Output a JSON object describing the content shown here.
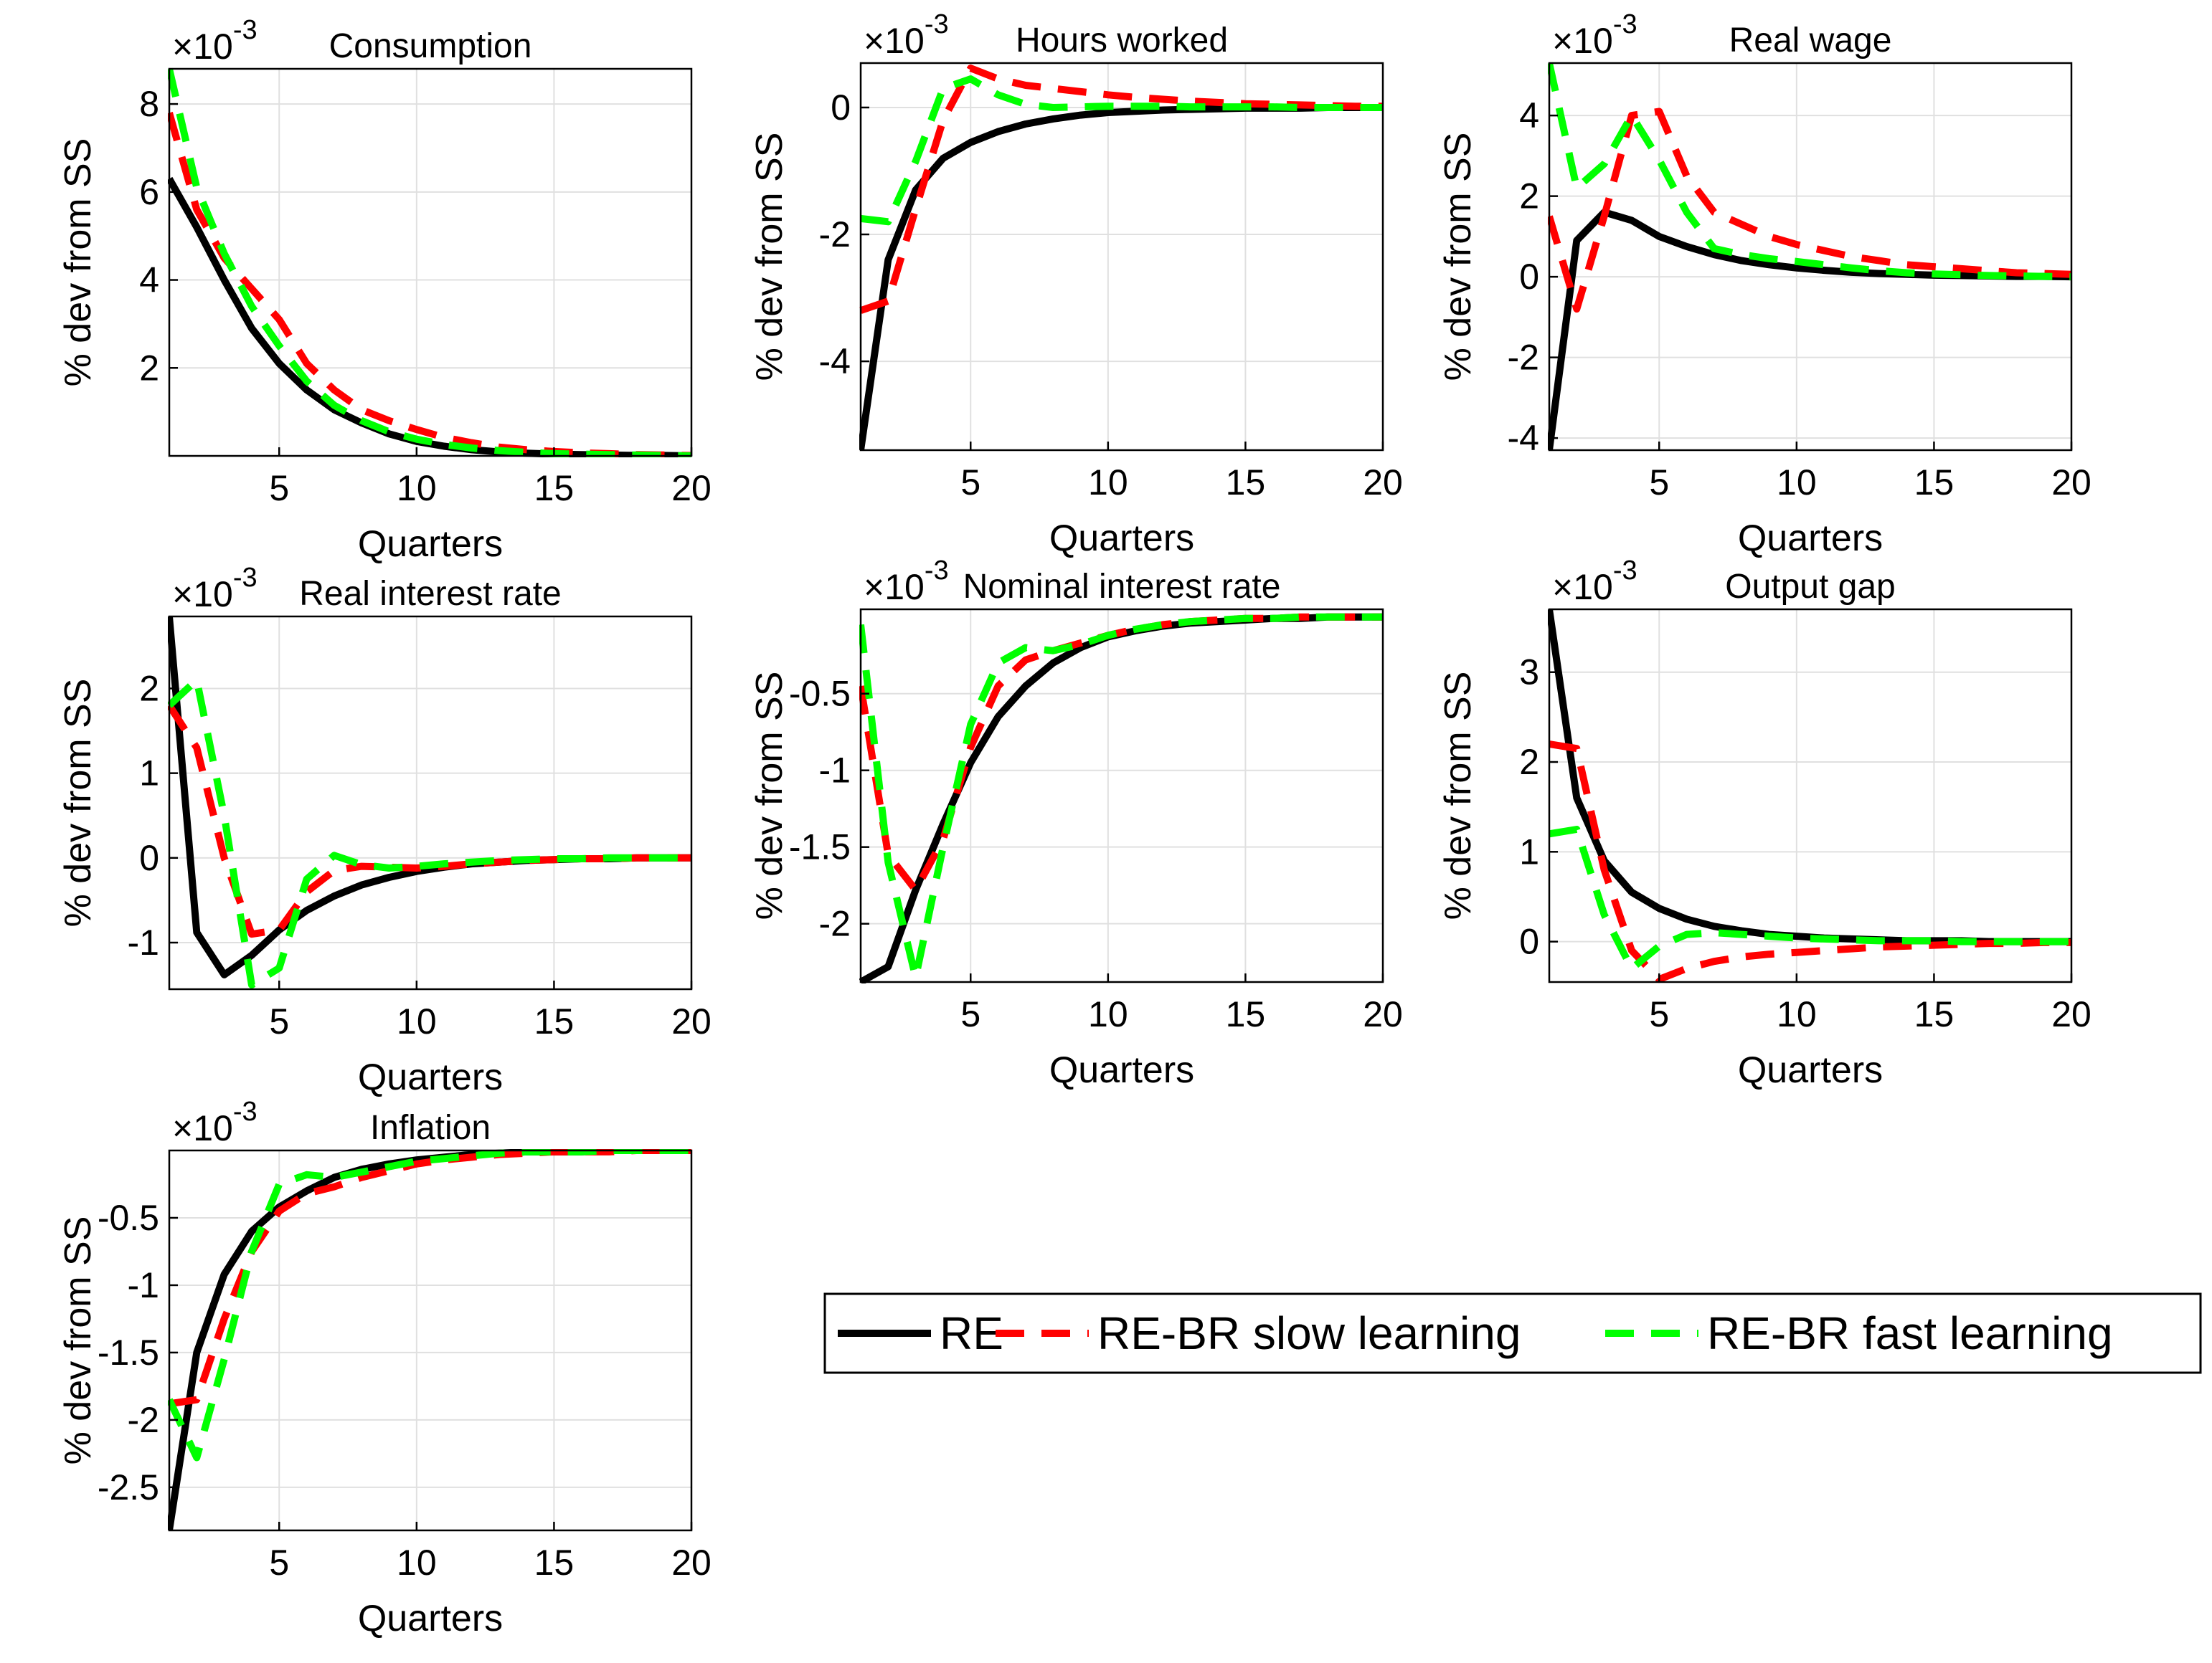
{
  "figure": {
    "legend": {
      "placement": "bottom-right",
      "entries": [
        {
          "name": "RE",
          "color": "#000000",
          "style": "solid"
        },
        {
          "name": "RE-BR slow learning",
          "color": "#ff0000",
          "style": "dashed"
        },
        {
          "name": "RE-BR fast learning",
          "color": "#00ff00",
          "style": "dashed"
        }
      ]
    }
  },
  "chart_data": [
    {
      "type": "line",
      "title": "Consumption",
      "exponent": "-3",
      "xlabel": "Quarters",
      "ylabel": "% dev from SS",
      "xlim": [
        1,
        20
      ],
      "ylim": [
        0,
        8.8
      ],
      "xticks": [
        5,
        10,
        15,
        20
      ],
      "yticks": [
        2,
        4,
        6,
        8
      ],
      "x": [
        1,
        2,
        3,
        4,
        5,
        6,
        7,
        8,
        9,
        10,
        11,
        12,
        13,
        14,
        15,
        16,
        17,
        18,
        19,
        20
      ],
      "series": [
        {
          "name": "RE",
          "values": [
            6.3,
            5.2,
            4.0,
            2.9,
            2.1,
            1.5,
            1.05,
            0.75,
            0.5,
            0.33,
            0.22,
            0.14,
            0.09,
            0.06,
            0.04,
            0.03,
            0.02,
            0.01,
            0.01,
            0.0
          ]
        },
        {
          "name": "RE-BR slow learning",
          "values": [
            7.8,
            5.6,
            4.5,
            3.8,
            3.1,
            2.1,
            1.5,
            1.05,
            0.8,
            0.6,
            0.42,
            0.3,
            0.2,
            0.14,
            0.1,
            0.07,
            0.05,
            0.03,
            0.02,
            0.01
          ]
        },
        {
          "name": "RE-BR fast learning",
          "values": [
            8.8,
            6.1,
            4.6,
            3.4,
            2.5,
            1.7,
            1.15,
            0.8,
            0.55,
            0.38,
            0.26,
            0.18,
            0.12,
            0.08,
            0.05,
            0.04,
            0.03,
            0.02,
            0.01,
            0.0
          ]
        }
      ]
    },
    {
      "type": "line",
      "title": "Hours worked",
      "exponent": "-3",
      "xlabel": "Quarters",
      "ylabel": "% dev from SS",
      "xlim": [
        1,
        20
      ],
      "ylim": [
        -5.4,
        0.7
      ],
      "xticks": [
        5,
        10,
        15,
        20
      ],
      "yticks": [
        -4,
        -2,
        0
      ],
      "x": [
        1,
        2,
        3,
        4,
        5,
        6,
        7,
        8,
        9,
        10,
        11,
        12,
        13,
        14,
        15,
        16,
        17,
        18,
        19,
        20
      ],
      "series": [
        {
          "name": "RE",
          "values": [
            -5.4,
            -2.4,
            -1.3,
            -0.8,
            -0.55,
            -0.38,
            -0.26,
            -0.18,
            -0.12,
            -0.08,
            -0.06,
            -0.04,
            -0.03,
            -0.02,
            -0.01,
            -0.01,
            -0.01,
            0.0,
            0.0,
            0.0
          ]
        },
        {
          "name": "RE-BR slow learning",
          "values": [
            -3.2,
            -3.05,
            -1.6,
            -0.2,
            0.62,
            0.45,
            0.35,
            0.3,
            0.25,
            0.2,
            0.16,
            0.13,
            0.1,
            0.08,
            0.06,
            0.05,
            0.04,
            0.03,
            0.02,
            0.02
          ]
        },
        {
          "name": "RE-BR fast learning",
          "values": [
            -1.75,
            -1.8,
            -0.85,
            0.3,
            0.45,
            0.2,
            0.05,
            0.0,
            0.01,
            0.02,
            0.02,
            0.02,
            0.01,
            0.01,
            0.01,
            0.01,
            0.0,
            0.0,
            0.0,
            0.0
          ]
        }
      ]
    },
    {
      "type": "line",
      "title": "Real wage",
      "exponent": "-3",
      "xlabel": "Quarters",
      "ylabel": "% dev from SS",
      "xlim": [
        1,
        20
      ],
      "ylim": [
        -4.3,
        5.3
      ],
      "xticks": [
        5,
        10,
        15,
        20
      ],
      "yticks": [
        -4,
        -2,
        0,
        2,
        4
      ],
      "x": [
        1,
        2,
        3,
        4,
        5,
        6,
        7,
        8,
        9,
        10,
        11,
        12,
        13,
        14,
        15,
        16,
        17,
        18,
        19,
        20
      ],
      "series": [
        {
          "name": "RE",
          "values": [
            -4.3,
            0.9,
            1.6,
            1.4,
            1.0,
            0.75,
            0.55,
            0.4,
            0.3,
            0.22,
            0.16,
            0.11,
            0.08,
            0.06,
            0.04,
            0.03,
            0.02,
            0.01,
            0.01,
            0.0
          ]
        },
        {
          "name": "RE-BR slow learning",
          "values": [
            1.5,
            -0.8,
            1.5,
            4.0,
            4.1,
            2.5,
            1.6,
            1.3,
            1.0,
            0.8,
            0.65,
            0.5,
            0.4,
            0.3,
            0.25,
            0.2,
            0.15,
            0.1,
            0.08,
            0.06
          ]
        },
        {
          "name": "RE-BR fast learning",
          "values": [
            5.3,
            2.2,
            2.8,
            4.0,
            2.9,
            1.6,
            0.7,
            0.55,
            0.45,
            0.38,
            0.3,
            0.22,
            0.15,
            0.1,
            0.07,
            0.05,
            0.03,
            0.02,
            0.01,
            0.0
          ]
        }
      ]
    },
    {
      "type": "line",
      "title": "Real interest rate",
      "exponent": "-3",
      "xlabel": "Quarters",
      "ylabel": "% dev from SS",
      "xlim": [
        1,
        20
      ],
      "ylim": [
        -1.55,
        2.85
      ],
      "xticks": [
        5,
        10,
        15,
        20
      ],
      "yticks": [
        -1,
        0,
        1,
        2
      ],
      "x": [
        1,
        2,
        3,
        4,
        5,
        6,
        7,
        8,
        9,
        10,
        11,
        12,
        13,
        14,
        15,
        16,
        17,
        18,
        19,
        20
      ],
      "series": [
        {
          "name": "RE",
          "values": [
            2.85,
            -0.88,
            -1.38,
            -1.15,
            -0.85,
            -0.62,
            -0.45,
            -0.32,
            -0.23,
            -0.16,
            -0.11,
            -0.07,
            -0.05,
            -0.03,
            -0.02,
            -0.01,
            -0.01,
            0.0,
            0.0,
            0.0
          ]
        },
        {
          "name": "RE-BR slow learning",
          "values": [
            1.8,
            1.3,
            0.0,
            -0.9,
            -0.85,
            -0.4,
            -0.15,
            -0.1,
            -0.11,
            -0.12,
            -0.1,
            -0.07,
            -0.05,
            -0.03,
            -0.02,
            -0.01,
            -0.01,
            0.0,
            0.0,
            0.0
          ]
        },
        {
          "name": "RE-BR fast learning",
          "values": [
            1.8,
            2.1,
            0.5,
            -1.5,
            -1.3,
            -0.25,
            0.03,
            -0.08,
            -0.12,
            -0.1,
            -0.07,
            -0.05,
            -0.03,
            -0.02,
            -0.01,
            -0.01,
            0.0,
            0.0,
            0.0,
            0.0
          ]
        }
      ]
    },
    {
      "type": "line",
      "title": "Nominal interest rate",
      "exponent": "-3",
      "xlabel": "Quarters",
      "ylabel": "% dev from SS",
      "xlim": [
        1,
        20
      ],
      "ylim": [
        -2.38,
        0.05
      ],
      "xticks": [
        5,
        10,
        15,
        20
      ],
      "yticks": [
        -2,
        -1.5,
        -1,
        -0.5
      ],
      "x": [
        1,
        2,
        3,
        4,
        5,
        6,
        7,
        8,
        9,
        10,
        11,
        12,
        13,
        14,
        15,
        16,
        17,
        18,
        19,
        20
      ],
      "series": [
        {
          "name": "RE",
          "values": [
            -2.38,
            -2.28,
            -1.78,
            -1.35,
            -0.95,
            -0.65,
            -0.45,
            -0.3,
            -0.2,
            -0.13,
            -0.09,
            -0.06,
            -0.04,
            -0.03,
            -0.02,
            -0.01,
            -0.01,
            0.0,
            0.0,
            0.0
          ]
        },
        {
          "name": "RE-BR slow learning",
          "values": [
            -0.45,
            -1.55,
            -1.78,
            -1.45,
            -0.85,
            -0.45,
            -0.28,
            -0.22,
            -0.17,
            -0.12,
            -0.08,
            -0.05,
            -0.03,
            -0.02,
            -0.01,
            -0.01,
            0.0,
            0.0,
            0.0,
            0.0
          ]
        },
        {
          "name": "RE-BR fast learning",
          "values": [
            -0.05,
            -1.6,
            -2.35,
            -1.5,
            -0.7,
            -0.3,
            -0.2,
            -0.22,
            -0.18,
            -0.12,
            -0.08,
            -0.05,
            -0.03,
            -0.02,
            -0.01,
            -0.01,
            0.0,
            0.0,
            0.0,
            0.0
          ]
        }
      ]
    },
    {
      "type": "line",
      "title": "Output gap",
      "exponent": "-3",
      "xlabel": "Quarters",
      "ylabel": "% dev from SS",
      "xlim": [
        1,
        20
      ],
      "ylim": [
        -0.45,
        3.7
      ],
      "xticks": [
        5,
        10,
        15,
        20
      ],
      "yticks": [
        0,
        1,
        2,
        3
      ],
      "x": [
        1,
        2,
        3,
        4,
        5,
        6,
        7,
        8,
        9,
        10,
        11,
        12,
        13,
        14,
        15,
        16,
        17,
        18,
        19,
        20
      ],
      "series": [
        {
          "name": "RE",
          "values": [
            3.7,
            1.6,
            0.9,
            0.55,
            0.37,
            0.25,
            0.17,
            0.12,
            0.08,
            0.06,
            0.04,
            0.03,
            0.02,
            0.01,
            0.01,
            0.01,
            0.0,
            0.0,
            0.0,
            0.0
          ]
        },
        {
          "name": "RE-BR slow learning",
          "values": [
            2.2,
            2.15,
            0.8,
            -0.1,
            -0.42,
            -0.3,
            -0.22,
            -0.17,
            -0.14,
            -0.12,
            -0.1,
            -0.08,
            -0.06,
            -0.05,
            -0.04,
            -0.03,
            -0.02,
            -0.02,
            -0.01,
            -0.01
          ]
        },
        {
          "name": "RE-BR fast learning",
          "values": [
            1.2,
            1.25,
            0.3,
            -0.3,
            -0.05,
            0.08,
            0.1,
            0.08,
            0.06,
            0.04,
            0.03,
            0.02,
            0.01,
            0.01,
            0.01,
            0.0,
            0.0,
            0.0,
            0.0,
            0.0
          ]
        }
      ]
    },
    {
      "type": "line",
      "title": "Inflation",
      "exponent": "-3",
      "xlabel": "Quarters",
      "ylabel": "% dev from SS",
      "xlim": [
        1,
        20
      ],
      "ylim": [
        -2.82,
        0.0
      ],
      "xticks": [
        5,
        10,
        15,
        20
      ],
      "yticks": [
        -2.5,
        -2,
        -1.5,
        -1,
        -0.5
      ],
      "x": [
        1,
        2,
        3,
        4,
        5,
        6,
        7,
        8,
        9,
        10,
        11,
        12,
        13,
        14,
        15,
        16,
        17,
        18,
        19,
        20
      ],
      "series": [
        {
          "name": "RE",
          "values": [
            -2.82,
            -1.5,
            -0.92,
            -0.6,
            -0.42,
            -0.3,
            -0.2,
            -0.14,
            -0.1,
            -0.07,
            -0.05,
            -0.03,
            -0.02,
            -0.01,
            -0.01,
            -0.01,
            0.0,
            0.0,
            0.0,
            0.0
          ]
        },
        {
          "name": "RE-BR slow learning",
          "values": [
            -1.88,
            -1.85,
            -1.25,
            -0.75,
            -0.45,
            -0.32,
            -0.27,
            -0.2,
            -0.15,
            -0.1,
            -0.07,
            -0.05,
            -0.03,
            -0.02,
            -0.01,
            -0.01,
            -0.01,
            0.0,
            0.0,
            0.0
          ]
        },
        {
          "name": "RE-BR fast learning",
          "values": [
            -1.85,
            -2.28,
            -1.55,
            -0.75,
            -0.25,
            -0.18,
            -0.2,
            -0.16,
            -0.12,
            -0.08,
            -0.06,
            -0.04,
            -0.02,
            -0.01,
            -0.01,
            -0.01,
            0.0,
            0.0,
            0.0,
            0.0
          ]
        }
      ]
    }
  ]
}
